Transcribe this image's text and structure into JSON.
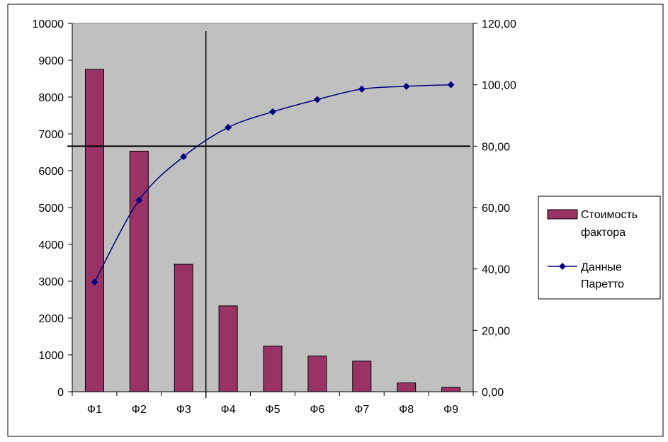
{
  "chart_data": {
    "type": "bar+line",
    "categories": [
      "Ф1",
      "Ф2",
      "Ф3",
      "Ф4",
      "Ф5",
      "Ф6",
      "Ф7",
      "Ф8",
      "Ф9"
    ],
    "series": [
      {
        "name": "Стоимость фактора",
        "kind": "bar",
        "axis": "left",
        "values": [
          8750,
          6530,
          3460,
          2330,
          1240,
          970,
          830,
          240,
          120
        ]
      },
      {
        "name": "Данные Паретто",
        "kind": "line",
        "axis": "right",
        "values": [
          35.7,
          62.4,
          76.6,
          86.1,
          91.2,
          95.2,
          98.6,
          99.5,
          100.0
        ]
      }
    ],
    "left_axis": {
      "ylim": [
        0,
        10000
      ],
      "ticks": [
        "0",
        "1000",
        "2000",
        "3000",
        "4000",
        "5000",
        "6000",
        "7000",
        "8000",
        "9000",
        "10000"
      ]
    },
    "right_axis": {
      "ylim": [
        0,
        120
      ],
      "ticks": [
        "0,00",
        "20,00",
        "40,00",
        "60,00",
        "80,00",
        "100,00",
        "120,00"
      ]
    },
    "reference_lines": {
      "horizontal_right_value": 80,
      "vertical_between": [
        "Ф3",
        "Ф4"
      ]
    },
    "grid": false,
    "legend_position": "right",
    "legend": {
      "bar_label_lines": [
        "Стоимость",
        "фактора"
      ],
      "line_label_lines": [
        "Данные",
        "Паретто"
      ]
    },
    "colors": {
      "bar_fill": "#993366",
      "line": "#000080",
      "plot_bg": "#c0c0c0"
    }
  }
}
